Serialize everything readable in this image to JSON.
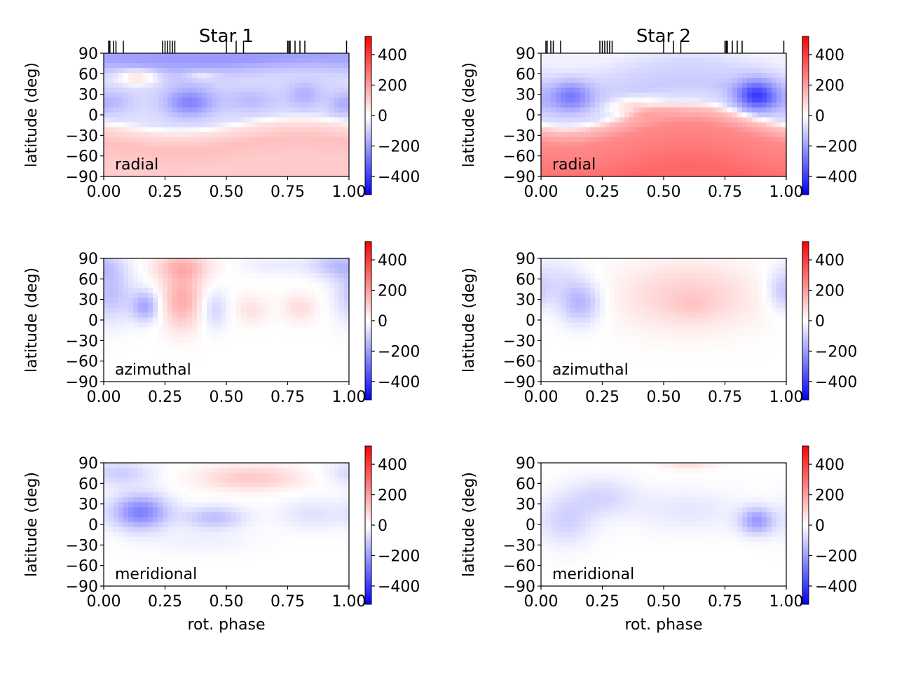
{
  "figure": {
    "colorbar_range": [
      -520,
      520
    ],
    "colorbar_ticks": [
      "400",
      "200",
      "0",
      "−200",
      "−400"
    ],
    "colorbar_tick_values": [
      400,
      200,
      0,
      -200,
      -400
    ],
    "colors": {
      "negative": "#0000ff",
      "zero": "#ffffff",
      "positive": "#ff0000"
    }
  },
  "chart_data": [
    {
      "type": "heatmap",
      "id": "s1-radial",
      "title": "Star 1",
      "label": "radial",
      "xlabel": "",
      "ylabel": "latitude (deg)",
      "xlim": [
        0,
        1
      ],
      "ylim": [
        -90,
        90
      ],
      "xticks": [
        "0.00",
        "0.25",
        "0.50",
        "0.75",
        "1.00"
      ],
      "yticks": [
        "90",
        "60",
        "30",
        "0",
        "−30",
        "−60",
        "−90"
      ],
      "observation_phases": [
        0.02,
        0.025,
        0.04,
        0.05,
        0.08,
        0.24,
        0.25,
        0.26,
        0.27,
        0.28,
        0.29,
        0.5,
        0.54,
        0.57,
        0.75,
        0.755,
        0.76,
        0.78,
        0.8,
        0.82,
        0.99
      ],
      "field": {
        "base": [
          [
            -90,
            110
          ],
          [
            -60,
            105
          ],
          [
            -30,
            130
          ],
          [
            -8,
            60
          ],
          [
            5,
            -60
          ],
          [
            30,
            -70
          ],
          [
            60,
            -80
          ],
          [
            90,
            -150
          ]
        ],
        "boundary": {
          "base": -12,
          "amp": -10,
          "phase": 0.3
        },
        "blobs": [
          {
            "x": 0.35,
            "y": 18,
            "sx": 0.07,
            "sy": 15,
            "a": -180
          },
          {
            "x": 0.05,
            "y": 18,
            "sx": 0.05,
            "sy": 12,
            "a": -60
          },
          {
            "x": 0.6,
            "y": 20,
            "sx": 0.08,
            "sy": 12,
            "a": -70
          },
          {
            "x": 0.82,
            "y": 28,
            "sx": 0.05,
            "sy": 14,
            "a": -90
          },
          {
            "x": 0.97,
            "y": 15,
            "sx": 0.04,
            "sy": 12,
            "a": -80
          },
          {
            "x": 0.14,
            "y": 55,
            "sx": 0.06,
            "sy": 8,
            "a": 170
          },
          {
            "x": 0.4,
            "y": 57,
            "sx": 0.05,
            "sy": 5,
            "a": 80
          },
          {
            "x": 0.5,
            "y": 82,
            "sx": 0.5,
            "sy": 10,
            "a": -60
          }
        ]
      }
    },
    {
      "type": "heatmap",
      "id": "s2-radial",
      "title": "Star 2",
      "label": "radial",
      "xlabel": "",
      "ylabel": "latitude (deg)",
      "xlim": [
        0,
        1
      ],
      "ylim": [
        -90,
        90
      ],
      "xticks": [
        "0.00",
        "0.25",
        "0.50",
        "0.75",
        "1.00"
      ],
      "yticks": [
        "90",
        "60",
        "30",
        "0",
        "−30",
        "−60",
        "−90"
      ],
      "observation_phases": [
        0.02,
        0.025,
        0.04,
        0.05,
        0.08,
        0.24,
        0.25,
        0.26,
        0.27,
        0.28,
        0.29,
        0.5,
        0.54,
        0.57,
        0.75,
        0.755,
        0.76,
        0.78,
        0.8,
        0.82,
        0.99
      ],
      "field": {
        "base": [
          [
            -90,
            310
          ],
          [
            -60,
            270
          ],
          [
            -30,
            240
          ],
          [
            -8,
            130
          ],
          [
            5,
            -60
          ],
          [
            30,
            -110
          ],
          [
            60,
            -80
          ],
          [
            90,
            -30
          ]
        ],
        "boundary": {
          "base": 0,
          "amp": -18,
          "phase": 0.1
        },
        "blobs": [
          {
            "x": 0.12,
            "y": 28,
            "sx": 0.06,
            "sy": 15,
            "a": -180
          },
          {
            "x": 0.88,
            "y": 28,
            "sx": 0.06,
            "sy": 16,
            "a": -300
          },
          {
            "x": 0.38,
            "y": 12,
            "sx": 0.08,
            "sy": 10,
            "a": 150
          }
        ]
      }
    },
    {
      "type": "heatmap",
      "id": "s1-azimuthal",
      "label": "azimuthal",
      "xlabel": "",
      "ylabel": "latitude (deg)",
      "xlim": [
        0,
        1
      ],
      "ylim": [
        -90,
        90
      ],
      "xticks": [
        "0.00",
        "0.25",
        "0.50",
        "0.75",
        "1.00"
      ],
      "yticks": [
        "90",
        "60",
        "30",
        "0",
        "−30",
        "−60",
        "−90"
      ],
      "field": {
        "base": [
          [
            -90,
            0
          ],
          [
            0,
            0
          ],
          [
            90,
            0
          ]
        ],
        "blobs": [
          {
            "x": 0.03,
            "y": 40,
            "sx": 0.06,
            "sy": 30,
            "a": -130
          },
          {
            "x": 0.17,
            "y": 20,
            "sx": 0.04,
            "sy": 16,
            "a": -180
          },
          {
            "x": 0.32,
            "y": 30,
            "sx": 0.06,
            "sy": 30,
            "a": 170
          },
          {
            "x": 0.32,
            "y": 78,
            "sx": 0.08,
            "sy": 14,
            "a": 130
          },
          {
            "x": 0.45,
            "y": 15,
            "sx": 0.04,
            "sy": 20,
            "a": -90
          },
          {
            "x": 0.6,
            "y": 15,
            "sx": 0.05,
            "sy": 15,
            "a": 60
          },
          {
            "x": 0.8,
            "y": 18,
            "sx": 0.05,
            "sy": 15,
            "a": 70
          },
          {
            "x": 0.95,
            "y": 80,
            "sx": 0.08,
            "sy": 14,
            "a": -120
          },
          {
            "x": 0.7,
            "y": 80,
            "sx": 0.1,
            "sy": 10,
            "a": -40
          }
        ]
      }
    },
    {
      "type": "heatmap",
      "id": "s2-azimuthal",
      "label": "azimuthal",
      "xlabel": "",
      "ylabel": "latitude (deg)",
      "xlim": [
        0,
        1
      ],
      "ylim": [
        -90,
        90
      ],
      "xticks": [
        "0.00",
        "0.25",
        "0.50",
        "0.75",
        "1.00"
      ],
      "yticks": [
        "90",
        "60",
        "30",
        "0",
        "−30",
        "−60",
        "−90"
      ],
      "field": {
        "base": [
          [
            -90,
            0
          ],
          [
            0,
            0
          ],
          [
            90,
            0
          ]
        ],
        "blobs": [
          {
            "x": 0.16,
            "y": 25,
            "sx": 0.06,
            "sy": 22,
            "a": -150
          },
          {
            "x": 0.05,
            "y": 60,
            "sx": 0.08,
            "sy": 25,
            "a": -60
          },
          {
            "x": 0.6,
            "y": 35,
            "sx": 0.2,
            "sy": 35,
            "a": 100
          },
          {
            "x": 0.62,
            "y": 20,
            "sx": 0.06,
            "sy": 12,
            "a": 30
          },
          {
            "x": 0.98,
            "y": 40,
            "sx": 0.04,
            "sy": 20,
            "a": -90
          }
        ]
      }
    },
    {
      "type": "heatmap",
      "id": "s1-meridional",
      "label": "meridional",
      "xlabel": "rot. phase",
      "ylabel": "latitude (deg)",
      "xlim": [
        0,
        1
      ],
      "ylim": [
        -90,
        90
      ],
      "xticks": [
        "0.00",
        "0.25",
        "0.50",
        "0.75",
        "1.00"
      ],
      "yticks": [
        "90",
        "60",
        "30",
        "0",
        "−30",
        "−60",
        "−90"
      ],
      "field": {
        "base": [
          [
            -90,
            0
          ],
          [
            0,
            0
          ],
          [
            90,
            0
          ]
        ],
        "blobs": [
          {
            "x": 0.15,
            "y": 18,
            "sx": 0.08,
            "sy": 18,
            "a": -260
          },
          {
            "x": 0.06,
            "y": 75,
            "sx": 0.1,
            "sy": 14,
            "a": -100
          },
          {
            "x": 0.45,
            "y": 10,
            "sx": 0.09,
            "sy": 12,
            "a": -130
          },
          {
            "x": 0.85,
            "y": 15,
            "sx": 0.1,
            "sy": 16,
            "a": -60
          },
          {
            "x": 0.6,
            "y": 68,
            "sx": 0.15,
            "sy": 13,
            "a": 110
          },
          {
            "x": 0.4,
            "y": -25,
            "sx": 0.15,
            "sy": 12,
            "a": -30
          }
        ]
      }
    },
    {
      "type": "heatmap",
      "id": "s2-meridional",
      "label": "meridional",
      "xlabel": "rot. phase",
      "ylabel": "latitude (deg)",
      "xlim": [
        0,
        1
      ],
      "ylim": [
        -90,
        90
      ],
      "xticks": [
        "0.00",
        "0.25",
        "0.50",
        "0.75",
        "1.00"
      ],
      "yticks": [
        "90",
        "60",
        "30",
        "0",
        "−30",
        "−60",
        "−90"
      ],
      "field": {
        "base": [
          [
            -90,
            0
          ],
          [
            0,
            0
          ],
          [
            90,
            0
          ]
        ],
        "blobs": [
          {
            "x": 0.1,
            "y": 5,
            "sx": 0.08,
            "sy": 25,
            "a": -90
          },
          {
            "x": 0.25,
            "y": 40,
            "sx": 0.1,
            "sy": 20,
            "a": -80
          },
          {
            "x": 0.6,
            "y": 20,
            "sx": 0.15,
            "sy": 22,
            "a": -50
          },
          {
            "x": 0.88,
            "y": 5,
            "sx": 0.05,
            "sy": 14,
            "a": -200
          },
          {
            "x": 0.6,
            "y": 88,
            "sx": 0.08,
            "sy": 6,
            "a": 60
          }
        ]
      }
    }
  ]
}
